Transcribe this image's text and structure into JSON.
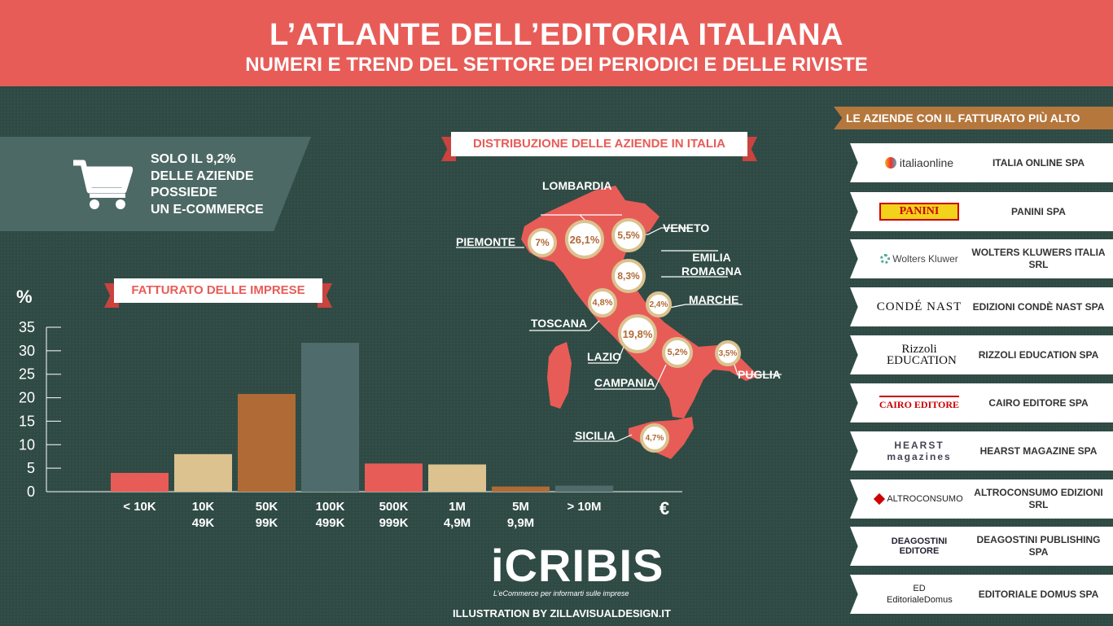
{
  "header": {
    "title": "L’ATLANTE DELL’EDITORIA ITALIANA",
    "subtitle": "NUMERI E TREND DEL SETTORE DEI PERIODICI E DELLE RIVISTE"
  },
  "ecommerce": {
    "icon": "shopping-cart-icon",
    "lines": [
      "SOLO IL 9,2%",
      "DELLE AZIENDE",
      "POSSIEDE",
      "UN E-COMMERCE"
    ]
  },
  "fatturato_label": "FATTURATO DELLE IMPRESE",
  "map_label": "DISTRIBUZIONE DELLE AZIENDE IN ITALIA",
  "regions": [
    {
      "name": "LOMBARDIA",
      "value": "26,1%"
    },
    {
      "name": "PIEMONTE",
      "value": "7%"
    },
    {
      "name": "VENETO",
      "value": "5,5%"
    },
    {
      "name": "EMILIA ROMAGNA",
      "value": "8,3%"
    },
    {
      "name": "MARCHE",
      "value": "2,4%"
    },
    {
      "name": "TOSCANA",
      "value": "4,8%"
    },
    {
      "name": "LAZIO",
      "value": "19,8%"
    },
    {
      "name": "CAMPANIA",
      "value": "5,2%"
    },
    {
      "name": "PUGLIA",
      "value": "3,5%"
    },
    {
      "name": "SICILIA",
      "value": "4,7%"
    }
  ],
  "companies_title": "LE AZIENDE CON IL FATTURATO PIÙ ALTO",
  "companies": [
    {
      "logo": "italiaonline",
      "name": "ITALIA ONLINE SPA"
    },
    {
      "logo": "PANINI",
      "name": "PANINI SPA"
    },
    {
      "logo": "Wolters Kluwer",
      "name": "WOLTERS KLUWERS ITALIA SRL"
    },
    {
      "logo": "CONDÉ NAST",
      "name": "EDIZIONI CONDÈ NAST SPA"
    },
    {
      "logo": "Rizzoli EDUCATION",
      "name": "RIZZOLI EDUCATION SPA"
    },
    {
      "logo": "CAIRO EDITORE",
      "name": "CAIRO EDITORE SPA"
    },
    {
      "logo": "HEARST magazines",
      "name": "HEARST MAGAZINE SPA"
    },
    {
      "logo": "ALTROCONSUMO",
      "name": "ALTROCONSUMO EDIZIONI SRL"
    },
    {
      "logo": "DEAGOSTINI EDITORE",
      "name": "DEAGOSTINI PUBLISHING SPA"
    },
    {
      "logo": "ED EditorialeDomus",
      "name": "EDITORIALE DOMUS SPA"
    }
  ],
  "footer": {
    "brand": "iCRIBIS",
    "tagline": "L’eCommerce per informarti sulle imprese",
    "credit": "ILLUSTRATION BY ZILLAVISUALDESIGN.IT"
  },
  "chart_data": {
    "type": "bar",
    "categories": [
      "< 10K",
      "10K 49K",
      "50K 99K",
      "100K 499K",
      "500K 999K",
      "1M 4,9M",
      "5M 9,9M",
      "> 10M"
    ],
    "values": [
      4,
      8,
      20.8,
      31.7,
      6,
      5.8,
      1.1,
      1.3
    ],
    "colors": [
      "#e85c57",
      "#dbc28f",
      "#b06a36",
      "#4f6b6b",
      "#e85c57",
      "#dbc28f",
      "#b06a36",
      "#4f6b6b"
    ],
    "ylabel": "%",
    "xlabel": "€",
    "yticks": [
      0,
      5,
      10,
      15,
      20,
      25,
      30,
      35
    ],
    "ylim": [
      0,
      35
    ]
  }
}
